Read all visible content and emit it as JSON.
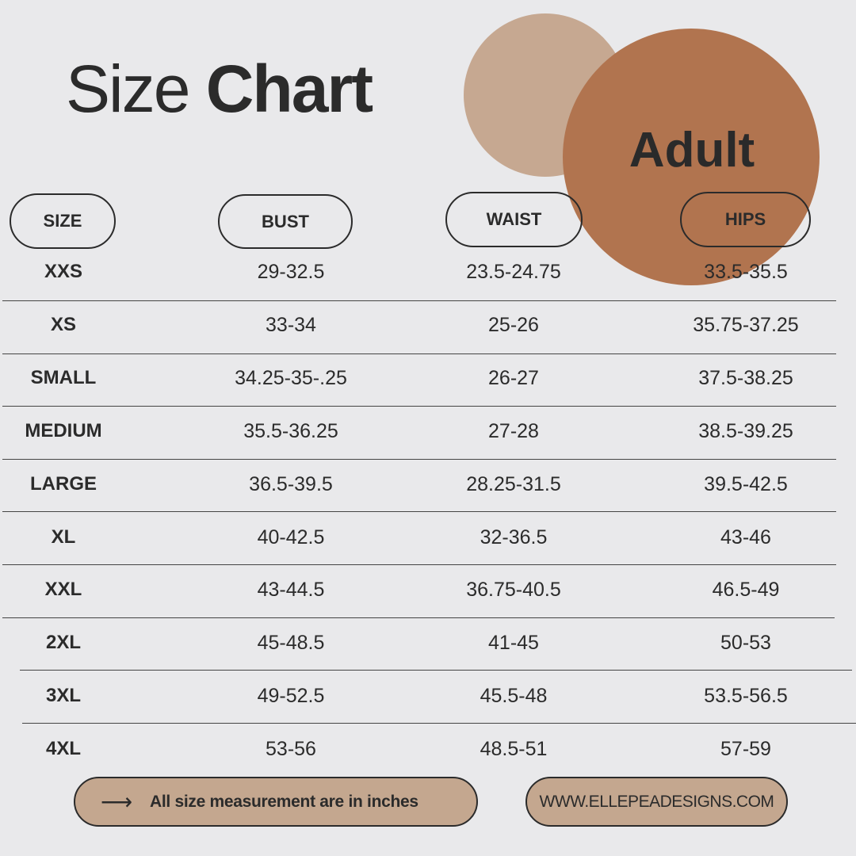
{
  "title": {
    "light": "Size",
    "bold": "Chart"
  },
  "badge": "Adult",
  "headers": [
    "SIZE",
    "BUST",
    "WAIST",
    "HIPS"
  ],
  "rows": [
    [
      "XXS",
      "29-32.5",
      "23.5-24.75",
      "33.5-35.5"
    ],
    [
      "XS",
      "33-34",
      "25-26",
      "35.75-37.25"
    ],
    [
      "SMALL",
      "34.25-35-.25",
      "26-27",
      "37.5-38.25"
    ],
    [
      "MEDIUM",
      "35.5-36.25",
      "27-28",
      "38.5-39.25"
    ],
    [
      "LARGE",
      "36.5-39.5",
      "28.25-31.5",
      "39.5-42.5"
    ],
    [
      "XL",
      "40-42.5",
      "32-36.5",
      "43-46"
    ],
    [
      "XXL",
      "43-44.5",
      "36.75-40.5",
      "46.5-49"
    ],
    [
      "2XL",
      "45-48.5",
      "41-45",
      "50-53"
    ],
    [
      "3XL",
      "49-52.5",
      "45.5-48",
      "53.5-56.5"
    ],
    [
      "4XL",
      "53-56",
      "48.5-51",
      "57-59"
    ]
  ],
  "footer": {
    "arrow_icon": "arrow-right-icon",
    "note": "All size measurement are in inches",
    "website": "WWW.ELLEPEADESIGNS.COM"
  },
  "colors": {
    "background": "#e9e9eb",
    "circle_light": "#c6a891",
    "circle_dark": "#b1744f",
    "pill_fill": "#c4a78f",
    "text": "#2b2b2b"
  }
}
